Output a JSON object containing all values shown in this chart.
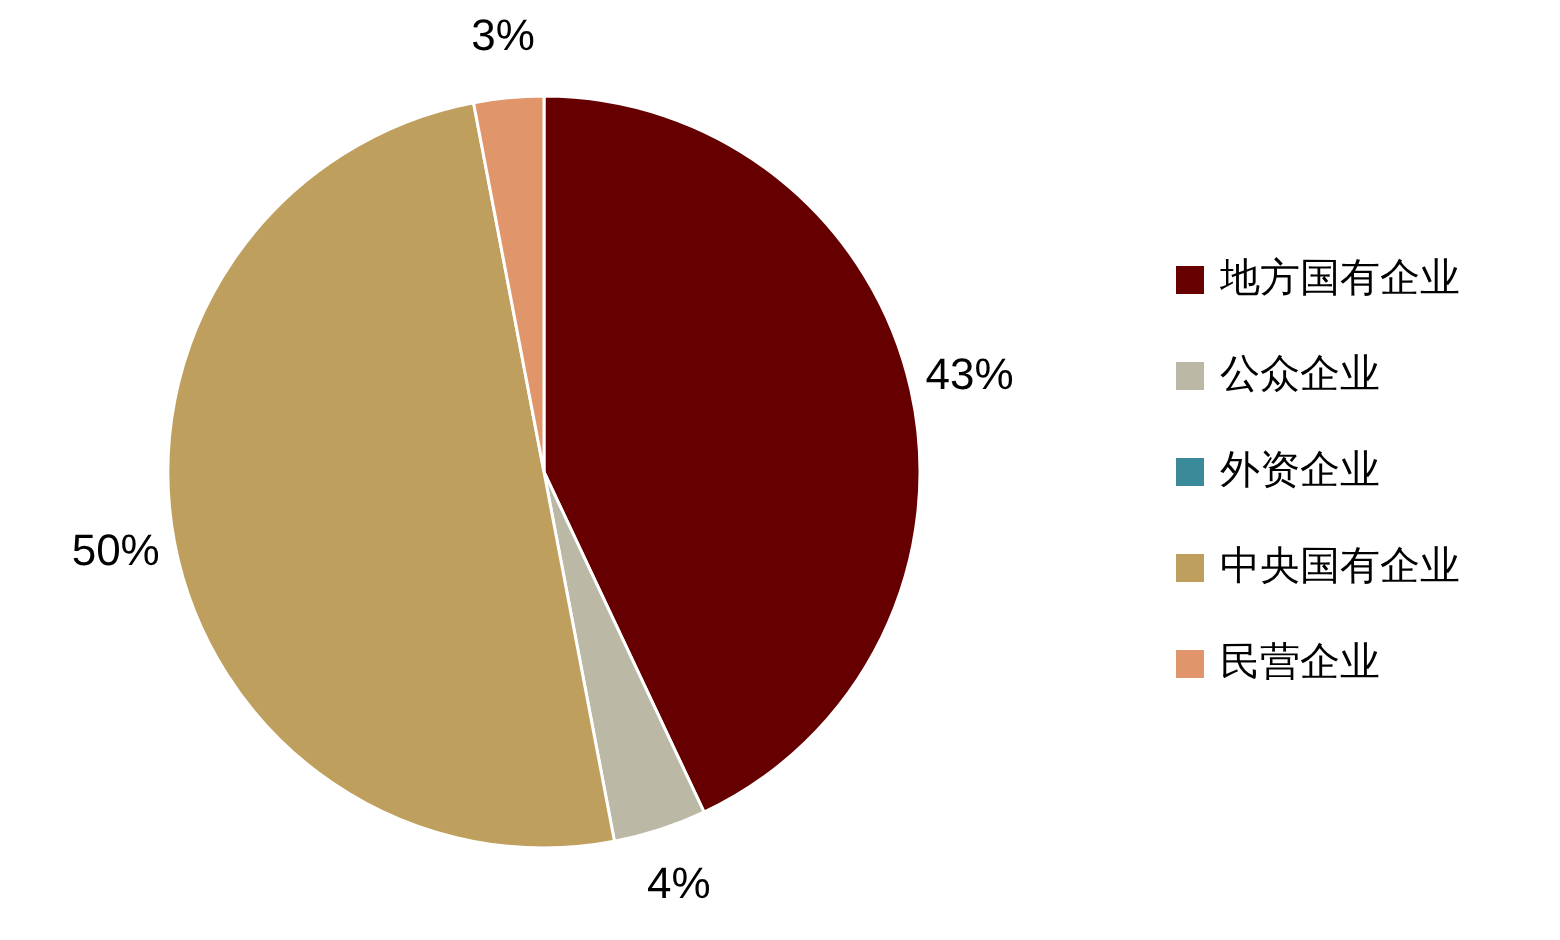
{
  "chart_data": {
    "type": "pie",
    "categories": [
      "地方国有企业",
      "公众企业",
      "外资企业",
      "中央国有企业",
      "民营企业"
    ],
    "values": [
      43,
      4,
      0,
      50,
      3
    ],
    "colors": [
      "#660000",
      "#bcb8a6",
      "#3a8a9a",
      "#bf9f5e",
      "#e0956a"
    ],
    "value_labels": [
      "43%",
      "4%",
      null,
      "50%",
      "3%"
    ],
    "legend": "right"
  }
}
